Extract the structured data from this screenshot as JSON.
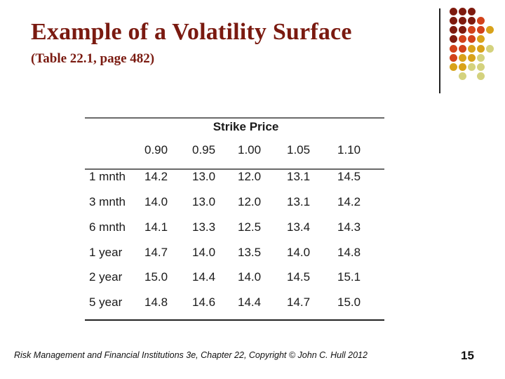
{
  "slide": {
    "title": "Example of a Volatility Surface",
    "subtitle": "(Table 22.1, page 482)",
    "footer": "Risk Management and Financial Institutions 3e, Chapter 22,  Copyright © John C. Hull 2012",
    "page_number": "15"
  },
  "colors": {
    "title": "#7a1a10",
    "dot_dark": "#7e1a0e",
    "dot_orange": "#d2421a",
    "dot_gold": "#d8a21a",
    "dot_pale": "#d4d27e"
  },
  "decor": {
    "dot_grid": [
      [
        "dark",
        "dark",
        "dark",
        "",
        ""
      ],
      [
        "dark",
        "dark",
        "dark",
        "orange",
        ""
      ],
      [
        "dark",
        "dark",
        "orange",
        "orange",
        "gold"
      ],
      [
        "dark",
        "orange",
        "orange",
        "gold",
        ""
      ],
      [
        "orange",
        "orange",
        "gold",
        "gold",
        "pale"
      ],
      [
        "orange",
        "gold",
        "gold",
        "pale",
        ""
      ],
      [
        "gold",
        "gold",
        "pale",
        "pale",
        ""
      ],
      [
        "",
        "pale",
        "",
        "pale",
        ""
      ]
    ]
  },
  "table": {
    "group_header": "Strike Price",
    "columns": [
      "0.90",
      "0.95",
      "1.00",
      "1.05",
      "1.10"
    ],
    "rows": [
      {
        "label": "1 mnth",
        "values": [
          "14.2",
          "13.0",
          "12.0",
          "13.1",
          "14.5"
        ]
      },
      {
        "label": "3 mnth",
        "values": [
          "14.0",
          "13.0",
          "12.0",
          "13.1",
          "14.2"
        ]
      },
      {
        "label": "6 mnth",
        "values": [
          "14.1",
          "13.3",
          "12.5",
          "13.4",
          "14.3"
        ]
      },
      {
        "label": "1 year",
        "values": [
          "14.7",
          "14.0",
          "13.5",
          "14.0",
          "14.8"
        ]
      },
      {
        "label": "2 year",
        "values": [
          "15.0",
          "14.4",
          "14.0",
          "14.5",
          "15.1"
        ]
      },
      {
        "label": "5 year",
        "values": [
          "14.8",
          "14.6",
          "14.4",
          "14.7",
          "15.0"
        ]
      }
    ]
  }
}
